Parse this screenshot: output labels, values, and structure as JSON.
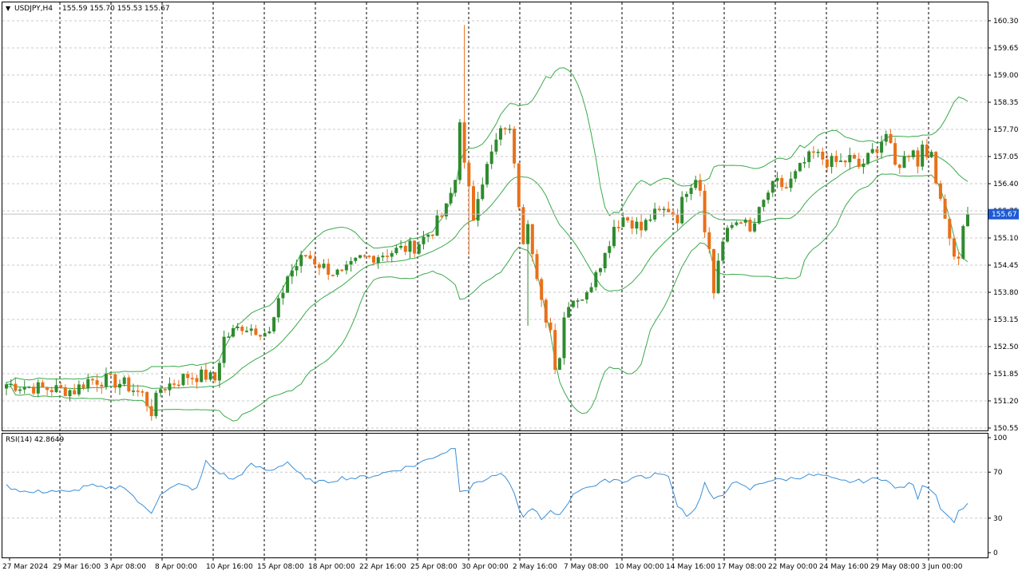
{
  "main_header": {
    "symbol": "USDJPY,H4",
    "ohlc": "155.59 155.70 155.53 155.67"
  },
  "rsi_header": "RSI(14) 42.8649",
  "current_price_label": "155.67",
  "colors": {
    "bull": "#2e8b2e",
    "bear": "#e8701a",
    "bands": "#3aaa4a",
    "rsi": "#3a8fd8",
    "price_tag": "#1e5bd6",
    "grid": "#c8c8c8"
  },
  "chart_data": [
    {
      "type": "candlestick",
      "title": "USDJPY,H4",
      "indicator": "Bollinger Bands",
      "ylim": [
        150.55,
        160.3
      ],
      "y_ticks": [
        "160.30",
        "159.65",
        "159.00",
        "158.35",
        "157.70",
        "157.05",
        "156.40",
        "155.75",
        "155.10",
        "154.45",
        "153.80",
        "153.15",
        "152.50",
        "151.85",
        "151.20",
        "150.55"
      ],
      "x_ticks": [
        "27 Mar 2024",
        "29 Mar 16:00",
        "3 Apr 08:00",
        "8 Apr 00:00",
        "10 Apr 16:00",
        "15 Apr 08:00",
        "18 Apr 00:00",
        "22 Apr 16:00",
        "25 Apr 08:00",
        "30 Apr 00:00",
        "2 May 16:00",
        "7 May 08:00",
        "10 May 00:00",
        "14 May 16:00",
        "17 May 08:00",
        "22 May 00:00",
        "24 May 16:00",
        "29 May 08:00",
        "3 Jun 00:00"
      ],
      "grid": true,
      "close_profile": [
        [
          0,
          151.6
        ],
        [
          8,
          151.5
        ],
        [
          15,
          151.45
        ],
        [
          18,
          151.7
        ],
        [
          22,
          151.7
        ],
        [
          26,
          151.6
        ],
        [
          30,
          151.35
        ],
        [
          32,
          150.95
        ],
        [
          34,
          151.5
        ],
        [
          36,
          151.6
        ],
        [
          40,
          151.8
        ],
        [
          44,
          151.8
        ],
        [
          46,
          151.7
        ],
        [
          48,
          152.7
        ],
        [
          52,
          153.0
        ],
        [
          56,
          152.9
        ],
        [
          58,
          152.8
        ],
        [
          62,
          154.2
        ],
        [
          66,
          154.7
        ],
        [
          70,
          154.4
        ],
        [
          74,
          154.2
        ],
        [
          78,
          154.6
        ],
        [
          82,
          154.7
        ],
        [
          86,
          154.8
        ],
        [
          90,
          154.9
        ],
        [
          94,
          155.3
        ],
        [
          97,
          155.8
        ],
        [
          99,
          156.5
        ],
        [
          100,
          158.0
        ],
        [
          101,
          156.8
        ],
        [
          102,
          156.2
        ],
        [
          103,
          155.6
        ],
        [
          104,
          156.2
        ],
        [
          106,
          156.8
        ],
        [
          108,
          157.4
        ],
        [
          110,
          157.8
        ],
        [
          111,
          157.6
        ],
        [
          112,
          157.0
        ],
        [
          113,
          156.0
        ],
        [
          114,
          155.1
        ],
        [
          115,
          155.6
        ],
        [
          116,
          154.7
        ],
        [
          117,
          154.0
        ],
        [
          118,
          153.5
        ],
        [
          120,
          152.9
        ],
        [
          121,
          152.1
        ],
        [
          122,
          152.3
        ],
        [
          123,
          153.2
        ],
        [
          124,
          153.6
        ],
        [
          126,
          153.7
        ],
        [
          128,
          153.7
        ],
        [
          130,
          154.4
        ],
        [
          132,
          154.7
        ],
        [
          134,
          155.4
        ],
        [
          136,
          155.6
        ],
        [
          138,
          155.5
        ],
        [
          140,
          155.3
        ],
        [
          142,
          155.6
        ],
        [
          144,
          155.7
        ],
        [
          146,
          155.8
        ],
        [
          148,
          155.6
        ],
        [
          150,
          156.3
        ],
        [
          152,
          156.6
        ],
        [
          153,
          156.3
        ],
        [
          154,
          155.4
        ],
        [
          155,
          154.8
        ],
        [
          156,
          153.8
        ],
        [
          157,
          154.6
        ],
        [
          158,
          155.0
        ],
        [
          160,
          155.4
        ],
        [
          162,
          155.6
        ],
        [
          164,
          155.2
        ],
        [
          166,
          155.7
        ],
        [
          168,
          156.2
        ],
        [
          170,
          156.4
        ],
        [
          172,
          156.3
        ],
        [
          174,
          156.6
        ],
        [
          176,
          156.9
        ],
        [
          178,
          157.1
        ],
        [
          180,
          157.0
        ],
        [
          182,
          156.9
        ],
        [
          184,
          156.9
        ],
        [
          186,
          157.0
        ],
        [
          188,
          156.8
        ],
        [
          190,
          157.0
        ],
        [
          192,
          157.3
        ],
        [
          194,
          157.6
        ],
        [
          196,
          156.8
        ],
        [
          198,
          157.0
        ],
        [
          200,
          157.3
        ],
        [
          201,
          156.8
        ],
        [
          202,
          157.4
        ],
        [
          203,
          157.2
        ],
        [
          204,
          157.0
        ],
        [
          205,
          156.4
        ],
        [
          206,
          156.2
        ],
        [
          207,
          155.6
        ],
        [
          208,
          155.2
        ],
        [
          209,
          154.6
        ],
        [
          210,
          154.7
        ],
        [
          211,
          155.3
        ],
        [
          212,
          155.67
        ]
      ]
    },
    {
      "type": "line",
      "title": "RSI(14) 42.8649",
      "ylim": [
        0,
        100
      ],
      "y_ticks": [
        "100",
        "70",
        "30",
        "0"
      ],
      "levels": [
        70,
        30
      ],
      "series": [
        {
          "values": [
            [
              0,
              58
            ],
            [
              5,
              52
            ],
            [
              10,
              54
            ],
            [
              14,
              52
            ],
            [
              18,
              59
            ],
            [
              22,
              55
            ],
            [
              26,
              58
            ],
            [
              30,
              40
            ],
            [
              32,
              35
            ],
            [
              34,
              52
            ],
            [
              38,
              59
            ],
            [
              42,
              55
            ],
            [
              44,
              79
            ],
            [
              46,
              72
            ],
            [
              50,
              63
            ],
            [
              54,
              76
            ],
            [
              58,
              71
            ],
            [
              62,
              79
            ],
            [
              66,
              63
            ],
            [
              70,
              61
            ],
            [
              74,
              65
            ],
            [
              78,
              65
            ],
            [
              82,
              68
            ],
            [
              86,
              72
            ],
            [
              90,
              76
            ],
            [
              94,
              83
            ],
            [
              97,
              88
            ],
            [
              99,
              92
            ],
            [
              100,
              55
            ],
            [
              102,
              55
            ],
            [
              104,
              62
            ],
            [
              106,
              64
            ],
            [
              108,
              68
            ],
            [
              110,
              66
            ],
            [
              112,
              50
            ],
            [
              114,
              30
            ],
            [
              116,
              40
            ],
            [
              118,
              28
            ],
            [
              120,
              35
            ],
            [
              122,
              33
            ],
            [
              124,
              45
            ],
            [
              126,
              54
            ],
            [
              128,
              58
            ],
            [
              130,
              58
            ],
            [
              132,
              62
            ],
            [
              134,
              64
            ],
            [
              136,
              62
            ],
            [
              138,
              65
            ],
            [
              140,
              67
            ],
            [
              142,
              65
            ],
            [
              144,
              70
            ],
            [
              146,
              65
            ],
            [
              148,
              42
            ],
            [
              150,
              33
            ],
            [
              152,
              38
            ],
            [
              154,
              60
            ],
            [
              156,
              45
            ],
            [
              158,
              50
            ],
            [
              160,
              62
            ],
            [
              162,
              58
            ],
            [
              164,
              55
            ],
            [
              166,
              60
            ],
            [
              168,
              63
            ],
            [
              170,
              63
            ],
            [
              172,
              64
            ],
            [
              174,
              65
            ],
            [
              176,
              67
            ],
            [
              178,
              67
            ],
            [
              180,
              67
            ],
            [
              182,
              64
            ],
            [
              184,
              62
            ],
            [
              186,
              62
            ],
            [
              188,
              62
            ],
            [
              190,
              63
            ],
            [
              192,
              64
            ],
            [
              194,
              65
            ],
            [
              196,
              55
            ],
            [
              198,
              58
            ],
            [
              200,
              60
            ],
            [
              201,
              45
            ],
            [
              202,
              60
            ],
            [
              203,
              58
            ],
            [
              204,
              55
            ],
            [
              205,
              50
            ],
            [
              206,
              40
            ],
            [
              207,
              35
            ],
            [
              208,
              30
            ],
            [
              209,
              28
            ],
            [
              210,
              35
            ],
            [
              211,
              40
            ],
            [
              212,
              42.86
            ]
          ]
        }
      ]
    }
  ]
}
